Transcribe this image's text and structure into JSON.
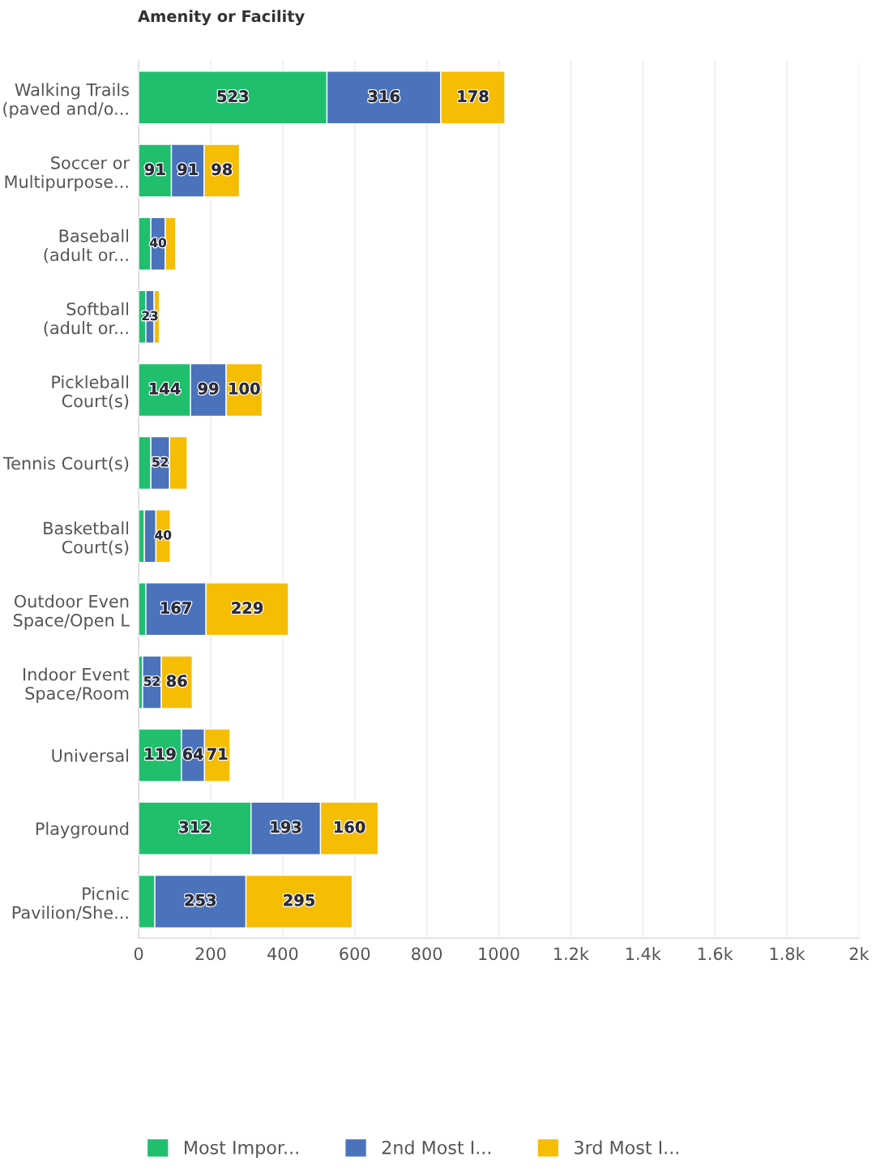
{
  "chart_data": {
    "type": "bar",
    "orientation": "horizontal",
    "stacked": true,
    "ylabel": "Amenity or Facility",
    "categories": [
      "Walking Trails\n(paved and/o...",
      "Soccer or\nMultipurpose...",
      "Baseball\n(adult or...",
      "Softball\n(adult or...",
      "Pickleball\nCourt(s)",
      "Tennis Court(s)",
      "Basketball\nCourt(s)",
      "Outdoor Even\nSpace/Open L",
      "Indoor Event\nSpace/Room",
      "Universal",
      "Playground",
      "Picnic\nPavilion/She..."
    ],
    "series": [
      {
        "name": "Most Impor...",
        "color": "#1fbf6d",
        "values": [
          523,
          91,
          34,
          20,
          144,
          34,
          16,
          20,
          11,
          119,
          312,
          45
        ],
        "value_labels": [
          "523",
          "91",
          null,
          null,
          "144",
          null,
          null,
          null,
          null,
          "119",
          "312",
          null
        ]
      },
      {
        "name": "2nd Most I...",
        "color": "#4a73bb",
        "values": [
          316,
          91,
          40,
          23,
          99,
          52,
          32,
          167,
          52,
          64,
          193,
          253
        ],
        "value_labels": [
          "316",
          "91",
          "40",
          "23",
          "99",
          "52",
          null,
          "167",
          "52",
          "64",
          "193",
          "253"
        ]
      },
      {
        "name": "3rd Most I...",
        "color": "#f6bd05",
        "values": [
          178,
          98,
          29,
          15,
          100,
          49,
          40,
          229,
          86,
          71,
          160,
          295
        ],
        "value_labels": [
          "178",
          "98",
          null,
          null,
          "100",
          null,
          "40",
          "229",
          "86",
          "71",
          "160",
          "295"
        ]
      }
    ],
    "xlim": [
      0,
      2000
    ],
    "xticks": [
      0,
      200,
      400,
      600,
      800,
      1000,
      {
        "value": 1200,
        "label": "1.2k"
      },
      {
        "value": 1400,
        "label": "1.4k"
      },
      {
        "value": 1600,
        "label": "1.6k"
      },
      {
        "value": 1800,
        "label": "1.8k"
      },
      {
        "value": 2000,
        "label": "2k"
      }
    ],
    "grid": "x",
    "legend": "bottom"
  }
}
